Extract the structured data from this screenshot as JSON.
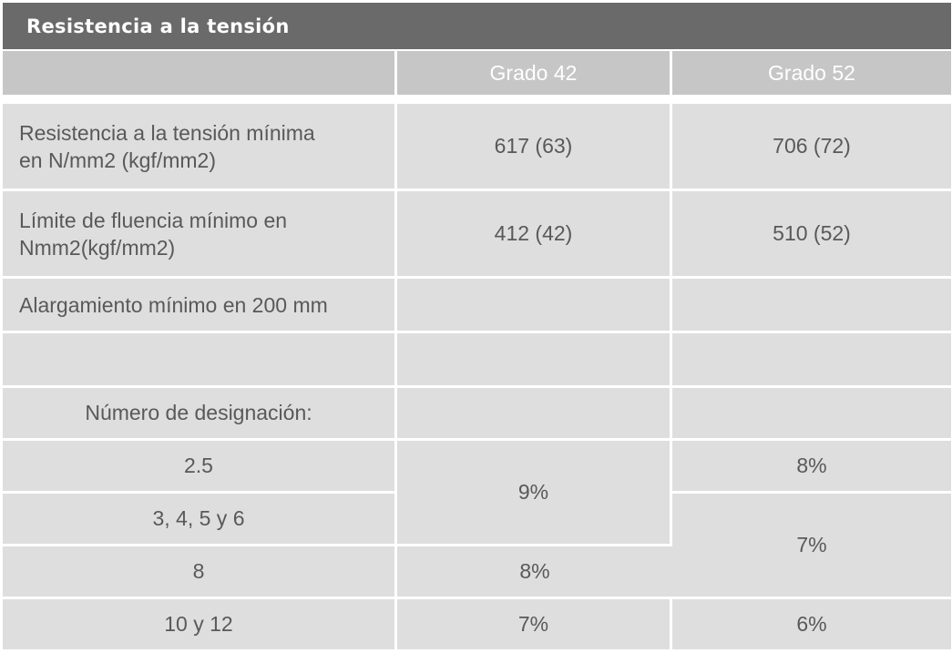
{
  "title": "Resistencia a la tensión",
  "columns": [
    "",
    "Grado  42",
    "Grado 52"
  ],
  "rows": {
    "tensile_min": {
      "label_line1": "Resistencia a la tensión mínima",
      "label_line2": "en N/mm2 (kgf/mm2)",
      "grado42": "617 (63)",
      "grado52": "706 (72)"
    },
    "yield_min": {
      "label_line1": "Límite de fluencia mínimo en",
      "label_line2": "Nmm2(kgf/mm2)",
      "grado42": "412 (42)",
      "grado52": "510 (52)"
    },
    "elongation": {
      "label": "Alargamiento mínimo en 200 mm"
    },
    "designation_header": {
      "label": "Número de designación:"
    },
    "designations": [
      {
        "label": "2.5"
      },
      {
        "label": "3, 4, 5 y 6"
      },
      {
        "label": "8"
      },
      {
        "label": "10 y 12"
      }
    ],
    "elongation_values": {
      "g42_2_5_to_6": "9%",
      "g42_8": "8%",
      "g42_10_12": "7%",
      "g52_2_5": "8%",
      "g52_3_to_8": "7%",
      "g52_10_12": "6%"
    }
  }
}
